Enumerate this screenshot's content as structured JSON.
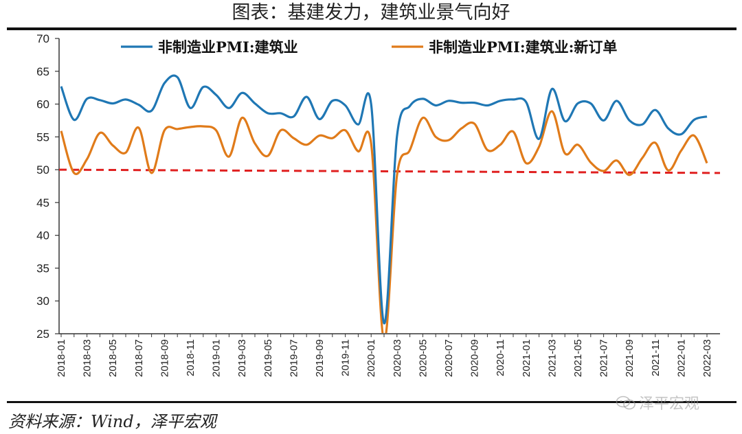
{
  "header": {
    "title": "图表：基建发力，建筑业景气向好"
  },
  "footer": {
    "source": "资料来源：Wind，泽平宏观",
    "watermark": "泽平宏观"
  },
  "chart_data": {
    "type": "line",
    "title": "图表：基建发力，建筑业景气向好",
    "xlabel": "",
    "ylabel": "",
    "ylim": [
      25,
      70
    ],
    "yticks": [
      25,
      30,
      35,
      40,
      45,
      50,
      55,
      60,
      65,
      70
    ],
    "x": [
      "2018-01",
      "2018-02",
      "2018-03",
      "2018-04",
      "2018-05",
      "2018-06",
      "2018-07",
      "2018-08",
      "2018-09",
      "2018-10",
      "2018-11",
      "2018-12",
      "2019-01",
      "2019-02",
      "2019-03",
      "2019-04",
      "2019-05",
      "2019-06",
      "2019-07",
      "2019-08",
      "2019-09",
      "2019-10",
      "2019-11",
      "2019-12",
      "2020-01",
      "2020-02",
      "2020-03",
      "2020-04",
      "2020-05",
      "2020-06",
      "2020-07",
      "2020-08",
      "2020-09",
      "2020-10",
      "2020-11",
      "2020-12",
      "2021-01",
      "2021-02",
      "2021-03",
      "2021-04",
      "2021-05",
      "2021-06",
      "2021-07",
      "2021-08",
      "2021-09",
      "2021-10",
      "2021-11",
      "2021-12",
      "2022-01",
      "2022-02",
      "2022-03"
    ],
    "xtick_labels": [
      "2018-01",
      "2018-03",
      "2018-05",
      "2018-07",
      "2018-09",
      "2018-11",
      "2019-01",
      "2019-03",
      "2019-05",
      "2019-07",
      "2019-09",
      "2019-11",
      "2020-01",
      "2020-03",
      "2020-05",
      "2020-07",
      "2020-09",
      "2020-11",
      "2021-01",
      "2021-03",
      "2021-05",
      "2021-07",
      "2021-09",
      "2021-11",
      "2022-01",
      "2022-03"
    ],
    "legend_position": "top",
    "series": [
      {
        "name": "非制造业PMI:建筑业",
        "color": "#1f77b4",
        "values": [
          62.7,
          57.6,
          60.8,
          60.6,
          60.1,
          60.7,
          59.9,
          59.0,
          63.2,
          64.1,
          59.4,
          62.6,
          61.4,
          59.4,
          61.7,
          60.1,
          58.6,
          58.6,
          58.1,
          61.1,
          57.7,
          60.5,
          59.8,
          56.9,
          60.0,
          26.6,
          55.1,
          59.7,
          60.8,
          59.8,
          60.5,
          60.2,
          60.2,
          59.8,
          60.5,
          60.7,
          60.3,
          54.7,
          62.3,
          57.4,
          60.1,
          60.1,
          57.5,
          60.5,
          57.5,
          56.9,
          59.1,
          56.3,
          55.4,
          57.6,
          58.1
        ]
      },
      {
        "name": "非制造业PMI:建筑业:新订单",
        "color": "#e07b1a",
        "values": [
          55.9,
          49.5,
          51.6,
          55.6,
          53.7,
          52.6,
          56.4,
          49.5,
          56.0,
          56.2,
          56.5,
          56.6,
          56.0,
          52.0,
          57.9,
          54.0,
          52.1,
          56.0,
          54.8,
          53.8,
          55.2,
          54.8,
          56.0,
          52.8,
          54.0,
          24.0,
          49.1,
          53.0,
          57.9,
          55.0,
          54.5,
          56.3,
          57.0,
          53.0,
          53.8,
          55.8,
          51.0,
          53.5,
          58.9,
          52.5,
          53.8,
          51.1,
          49.8,
          51.4,
          49.2,
          51.8,
          54.1,
          49.9,
          52.9,
          55.2,
          51.0
        ]
      }
    ],
    "reference_line": {
      "label": "",
      "y_start": 50.0,
      "y_end": 49.5,
      "color": "#e02020",
      "style": "dashed"
    }
  }
}
